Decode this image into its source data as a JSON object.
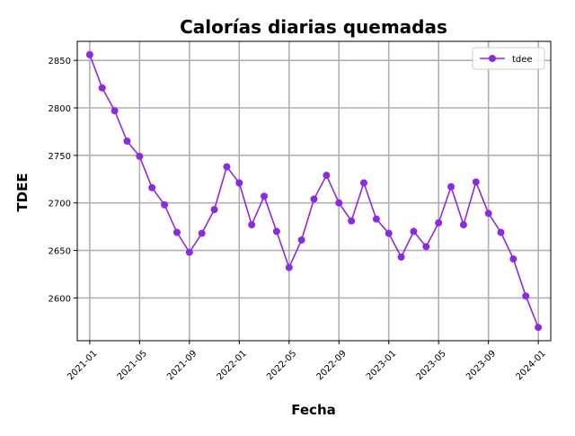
{
  "chart_data": {
    "type": "line",
    "title": "Calorías diarias quemadas",
    "xlabel": "Fecha",
    "ylabel": "TDEE",
    "grid": true,
    "legend_position": "top-right",
    "x_ticks": [
      "2021-01",
      "2021-05",
      "2021-09",
      "2022-01",
      "2022-05",
      "2022-09",
      "2023-01",
      "2023-05",
      "2023-09",
      "2024-01"
    ],
    "y_ticks": [
      2600,
      2650,
      2700,
      2750,
      2800,
      2850
    ],
    "ylim": [
      2555,
      2870
    ],
    "xlim": [
      "2020-12",
      "2024-02"
    ],
    "series": [
      {
        "name": "tdee",
        "color": "#8a2be2",
        "marker": "circle",
        "x": [
          "2021-01",
          "2021-02",
          "2021-03",
          "2021-04",
          "2021-05",
          "2021-06",
          "2021-07",
          "2021-08",
          "2021-09",
          "2021-10",
          "2021-11",
          "2021-12",
          "2022-01",
          "2022-02",
          "2022-03",
          "2022-04",
          "2022-05",
          "2022-06",
          "2022-07",
          "2022-08",
          "2022-09",
          "2022-10",
          "2022-11",
          "2022-12",
          "2023-01",
          "2023-02",
          "2023-03",
          "2023-04",
          "2023-05",
          "2023-06",
          "2023-07",
          "2023-08",
          "2023-09",
          "2023-10",
          "2023-11",
          "2023-12",
          "2024-01"
        ],
        "values": [
          2856,
          2821,
          2797,
          2765,
          2749,
          2716,
          2698,
          2669,
          2648,
          2668,
          2693,
          2738,
          2721,
          2677,
          2707,
          2670,
          2632,
          2661,
          2704,
          2729,
          2700,
          2681,
          2721,
          2683,
          2668,
          2643,
          2670,
          2654,
          2679,
          2717,
          2677,
          2722,
          2689,
          2669,
          2641,
          2602,
          2569
        ]
      }
    ]
  }
}
